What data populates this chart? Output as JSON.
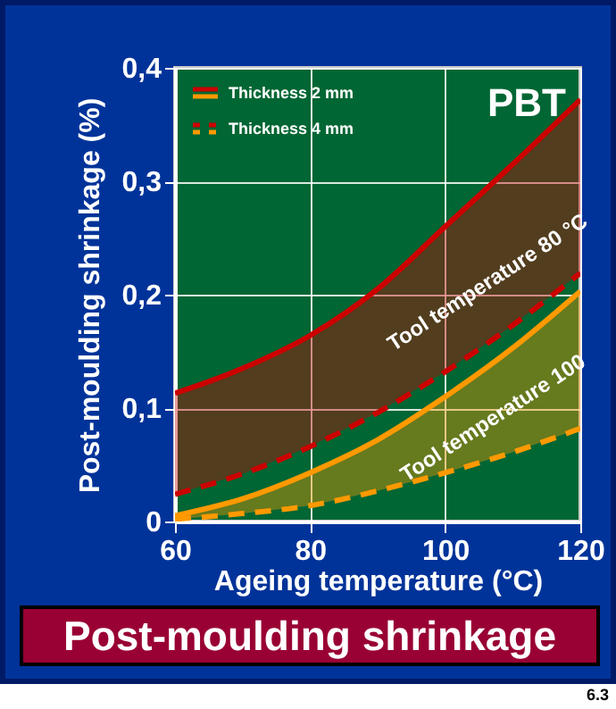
{
  "chart_data": {
    "type": "line",
    "title": "Post-moulding shrinkage",
    "xlabel": "Ageing temperature (°C)",
    "ylabel": "Post-moulding shrinkage (%)",
    "x": [
      60,
      70,
      80,
      90,
      100,
      110,
      120
    ],
    "series": [
      {
        "name": "Thickness 2 mm",
        "color": "#cc0000",
        "line_style": "solid",
        "values": [
          0.113,
          0.135,
          0.164,
          0.205,
          0.26,
          0.315,
          0.372
        ],
        "lower": [
          0.024,
          0.042,
          0.066,
          0.096,
          0.132,
          0.173,
          0.219
        ],
        "upper": [
          0.113,
          0.135,
          0.164,
          0.205,
          0.26,
          0.315,
          0.372
        ]
      },
      {
        "name": "Thickness 4 mm",
        "color": "#cc0000",
        "line_style": "dashed",
        "values": [
          0.024,
          0.042,
          0.066,
          0.096,
          0.132,
          0.173,
          0.219
        ]
      },
      {
        "color": "#ff9900",
        "line_style": "solid",
        "values": [
          0.005,
          0.02,
          0.043,
          0.072,
          0.11,
          0.153,
          0.203
        ],
        "lower": [
          0.002,
          0.007,
          0.014,
          0.027,
          0.043,
          0.061,
          0.082
        ],
        "upper": [
          0.005,
          0.02,
          0.043,
          0.072,
          0.11,
          0.153,
          0.203
        ]
      },
      {
        "color": "#ff9900",
        "line_style": "dashed",
        "values": [
          0.002,
          0.007,
          0.014,
          0.027,
          0.043,
          0.061,
          0.082
        ]
      }
    ],
    "xlim": [
      60,
      120
    ],
    "xticks": [
      60,
      80,
      100,
      120
    ],
    "ylim": [
      0,
      0.4
    ],
    "yticks": [
      {
        "value": 0,
        "label": "0"
      },
      {
        "value": 0.1,
        "label": "0,1"
      },
      {
        "value": 0.2,
        "label": "0,2"
      },
      {
        "value": 0.3,
        "label": "0,3"
      },
      {
        "value": 0.4,
        "label": "0,4"
      }
    ],
    "grid": true,
    "legend": "top left",
    "marker": "none",
    "annotations": [
      "PBT",
      "Tool temperature 80 °C",
      "Tool temperature 100",
      "6.3"
    ]
  }
}
